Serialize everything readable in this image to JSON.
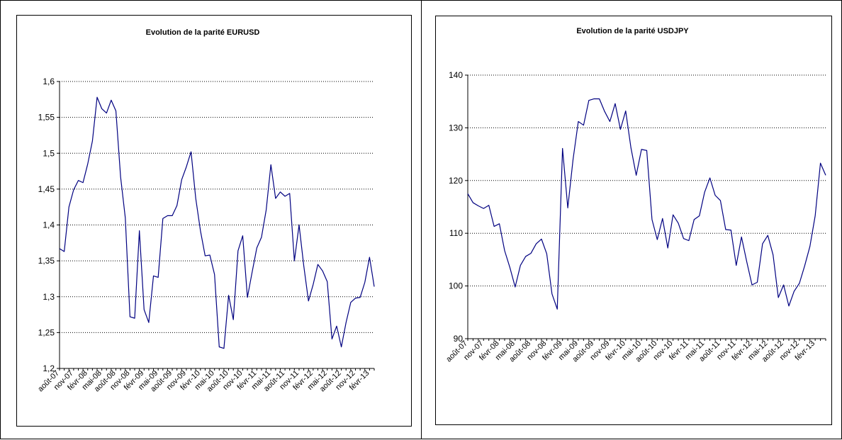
{
  "chart_data": [
    {
      "type": "line",
      "title": "Evolution de la parité EURUSD",
      "xlabel": "",
      "ylabel": "",
      "ylim": [
        1.2,
        1.6
      ],
      "yticks": [
        1.2,
        1.25,
        1.3,
        1.35,
        1.4,
        1.45,
        1.5,
        1.55,
        1.6
      ],
      "ytick_labels": [
        "1,2",
        "1,25",
        "1,3",
        "1,35",
        "1,4",
        "1,45",
        "1,5",
        "1,55",
        "1,6"
      ],
      "xtick_labels": [
        "août-07",
        "nov-07",
        "févr-08",
        "mai-08",
        "août-08",
        "nov-08",
        "févr-09",
        "mai-09",
        "août-09",
        "nov-09",
        "févr-10",
        "mai-10",
        "août-10",
        "nov-10",
        "févr-11",
        "mai-11",
        "août-11",
        "nov-11",
        "févr-12",
        "mai-12",
        "août-12",
        "nov-12",
        "févr-13"
      ],
      "grid": "horizontal",
      "line_color": "#000080",
      "series": [
        {
          "values": [
            1.367,
            1.363,
            1.425,
            1.449,
            1.462,
            1.459,
            1.485,
            1.517,
            1.578,
            1.562,
            1.556,
            1.574,
            1.559,
            1.467,
            1.41,
            1.272,
            1.27,
            1.392,
            1.282,
            1.264,
            1.329,
            1.327,
            1.409,
            1.413,
            1.413,
            1.427,
            1.463,
            1.481,
            1.502,
            1.437,
            1.392,
            1.357,
            1.358,
            1.331,
            1.23,
            1.228,
            1.302,
            1.268,
            1.364,
            1.385,
            1.299,
            1.334,
            1.368,
            1.383,
            1.421,
            1.484,
            1.437,
            1.446,
            1.44,
            1.444,
            1.35,
            1.4,
            1.343,
            1.294,
            1.317,
            1.345,
            1.336,
            1.321,
            1.241,
            1.259,
            1.23,
            1.264,
            1.292,
            1.298,
            1.299,
            1.32,
            1.355,
            1.314
          ]
        }
      ]
    },
    {
      "type": "line",
      "title": "Evolution de la parité USDJPY",
      "xlabel": "",
      "ylabel": "",
      "ylim": [
        90,
        140
      ],
      "yticks": [
        90,
        100,
        110,
        120,
        130,
        140
      ],
      "ytick_labels": [
        "90",
        "100",
        "110",
        "120",
        "130",
        "140"
      ],
      "xtick_labels": [
        "août-07",
        "nov-07",
        "févr-08",
        "mai-08",
        "août-08",
        "nov-08",
        "févr-09",
        "mai-09",
        "août-09",
        "nov-09",
        "févr-10",
        "mai-10",
        "août-10",
        "nov-10",
        "févr-11",
        "mai-11",
        "août-11",
        "nov-11",
        "févr-12",
        "mai-12",
        "août-12",
        "nov-12",
        "févr-13"
      ],
      "grid": "horizontal",
      "line_color": "#000080",
      "series": [
        {
          "values": [
            117.5,
            115.8,
            115.2,
            114.7,
            115.3,
            111.3,
            111.8,
            106.7,
            103.5,
            99.8,
            103.9,
            105.6,
            106.2,
            108.0,
            108.9,
            106.1,
            98.5,
            95.6,
            126.1,
            114.8,
            124.0,
            131.2,
            130.5,
            135.2,
            135.5,
            135.5,
            133.1,
            131.2,
            134.6,
            129.7,
            133.2,
            126.2,
            121.0,
            125.9,
            125.7,
            112.6,
            108.8,
            112.8,
            107.2,
            113.5,
            111.9,
            109.0,
            108.6,
            112.6,
            113.3,
            117.8,
            120.5,
            117.2,
            116.2,
            110.7,
            110.6,
            103.9,
            109.3,
            104.6,
            100.2,
            100.7,
            108.0,
            109.6,
            105.9,
            97.8,
            100.2,
            96.2,
            99.0,
            100.5,
            103.8,
            107.5,
            113.3,
            123.3,
            121.0
          ]
        }
      ]
    }
  ]
}
